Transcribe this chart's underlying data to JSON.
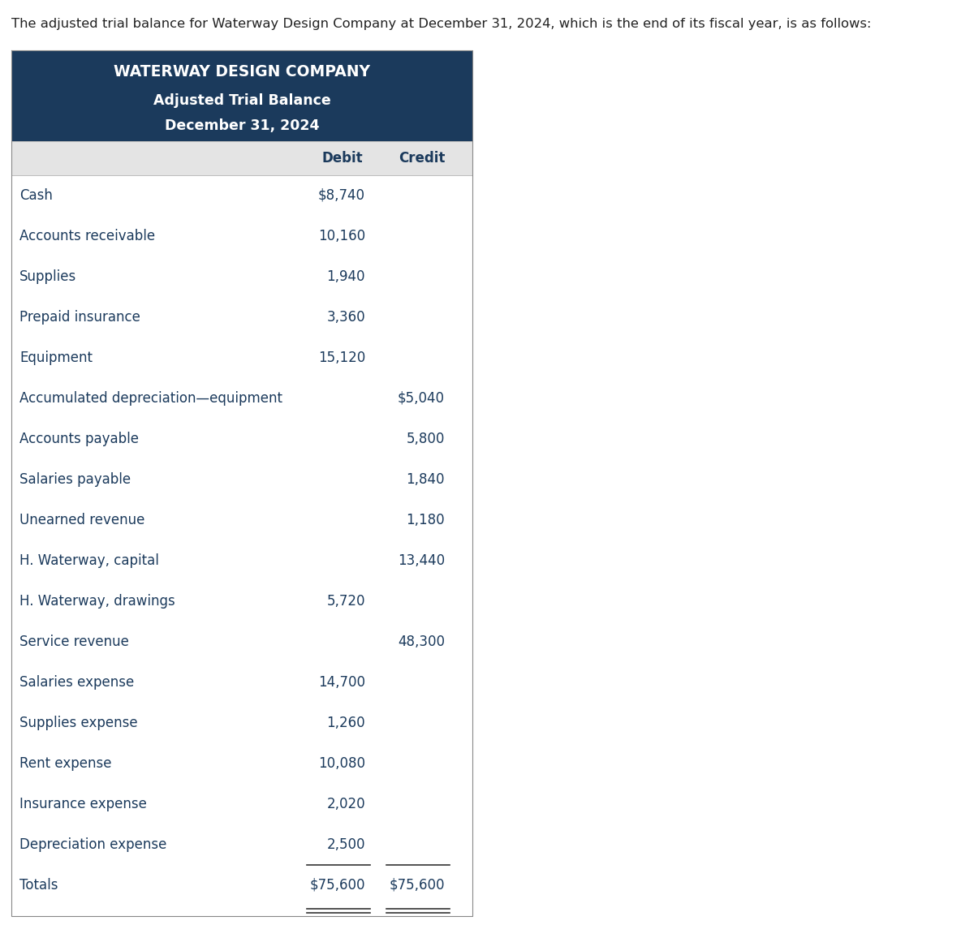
{
  "intro_text": "The adjusted trial balance for Waterway Design Company at December 31, 2024, which is the end of its fiscal year, is as follows:",
  "company_name": "WATERWAY DESIGN COMPANY",
  "subtitle1": "Adjusted Trial Balance",
  "subtitle2": "December 31, 2024",
  "header_bg": "#1b3a5c",
  "header_text_color": "#ffffff",
  "col_header_bg": "#e4e4e4",
  "row_bg": "#ffffff",
  "text_color": "#1b3a5c",
  "border_color": "#aaaaaa",
  "col_header_debit": "Debit",
  "col_header_credit": "Credit",
  "rows": [
    {
      "account": "Cash",
      "debit": "$8,740",
      "credit": ""
    },
    {
      "account": "Accounts receivable",
      "debit": "10,160",
      "credit": ""
    },
    {
      "account": "Supplies",
      "debit": "1,940",
      "credit": ""
    },
    {
      "account": "Prepaid insurance",
      "debit": "3,360",
      "credit": ""
    },
    {
      "account": "Equipment",
      "debit": "15,120",
      "credit": ""
    },
    {
      "account": "Accumulated depreciation—equipment",
      "debit": "",
      "credit": "$5,040"
    },
    {
      "account": "Accounts payable",
      "debit": "",
      "credit": "5,800"
    },
    {
      "account": "Salaries payable",
      "debit": "",
      "credit": "1,840"
    },
    {
      "account": "Unearned revenue",
      "debit": "",
      "credit": "1,180"
    },
    {
      "account": "H. Waterway, capital",
      "debit": "",
      "credit": "13,440"
    },
    {
      "account": "H. Waterway, drawings",
      "debit": "5,720",
      "credit": ""
    },
    {
      "account": "Service revenue",
      "debit": "",
      "credit": "48,300"
    },
    {
      "account": "Salaries expense",
      "debit": "14,700",
      "credit": ""
    },
    {
      "account": "Supplies expense",
      "debit": "1,260",
      "credit": ""
    },
    {
      "account": "Rent expense",
      "debit": "10,080",
      "credit": ""
    },
    {
      "account": "Insurance expense",
      "debit": "2,020",
      "credit": ""
    },
    {
      "account": "Depreciation expense",
      "debit": "2,500",
      "credit": ""
    }
  ],
  "totals_row": {
    "account": "Totals",
    "debit": "$75,600",
    "credit": "$75,600"
  },
  "intro_fontsize": 11.8,
  "header_fontsize": 13.5,
  "subheader_fontsize": 12.5,
  "col_header_fontsize": 12,
  "row_fontsize": 12
}
